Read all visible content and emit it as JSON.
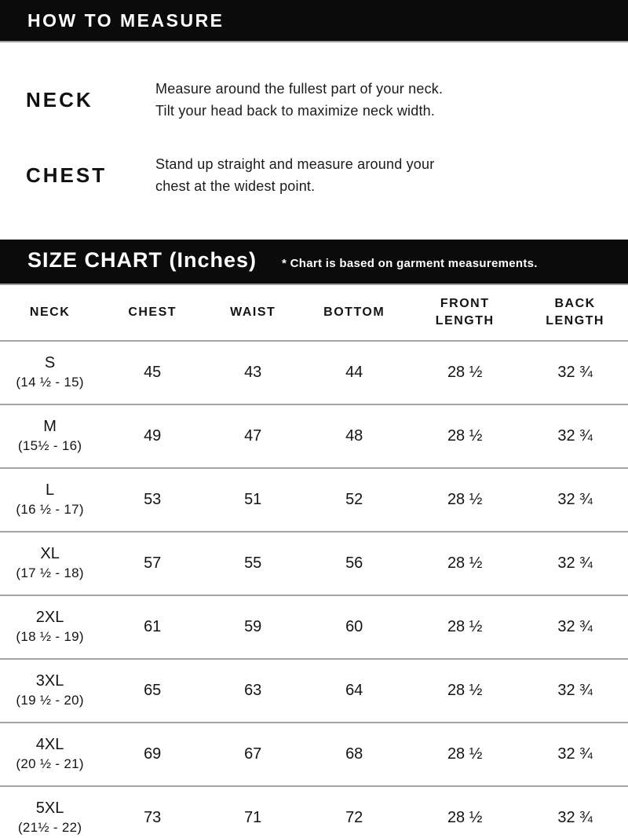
{
  "colors": {
    "header_bar_bg": "#0b0b0b",
    "header_bar_text": "#ffffff",
    "divider_gray": "#a5a5a5",
    "body_text": "#1b1b1b"
  },
  "how_to_measure": {
    "title": "HOW TO MEASURE",
    "items": [
      {
        "label": "NECK",
        "lines": [
          "Measure around the fullest part of your neck.",
          "Tilt your head back to maximize neck width."
        ]
      },
      {
        "label": "CHEST",
        "lines": [
          "Stand up straight and measure around your",
          "chest at the widest point."
        ]
      }
    ]
  },
  "size_chart": {
    "title": "SIZE CHART (Inches)",
    "note": "* Chart is based on garment measurements.",
    "columns": [
      "NECK",
      "CHEST",
      "WAIST",
      "BOTTOM",
      "FRONT LENGTH",
      "BACK LENGTH"
    ],
    "rows": [
      {
        "size": "S",
        "neck_range": "(14 ½ - 15)",
        "chest": "45",
        "waist": "43",
        "bottom": "44",
        "front_length": "28 ½",
        "back_length": "32 ¾"
      },
      {
        "size": "M",
        "neck_range": "(15½ - 16)",
        "chest": "49",
        "waist": "47",
        "bottom": "48",
        "front_length": "28 ½",
        "back_length": "32 ¾"
      },
      {
        "size": "L",
        "neck_range": "(16 ½ - 17)",
        "chest": "53",
        "waist": "51",
        "bottom": "52",
        "front_length": "28 ½",
        "back_length": "32 ¾"
      },
      {
        "size": "XL",
        "neck_range": "(17 ½ - 18)",
        "chest": "57",
        "waist": "55",
        "bottom": "56",
        "front_length": "28 ½",
        "back_length": "32 ¾"
      },
      {
        "size": "2XL",
        "neck_range": "(18 ½ - 19)",
        "chest": "61",
        "waist": "59",
        "bottom": "60",
        "front_length": "28 ½",
        "back_length": "32 ¾"
      },
      {
        "size": "3XL",
        "neck_range": "(19 ½ - 20)",
        "chest": "65",
        "waist": "63",
        "bottom": "64",
        "front_length": "28 ½",
        "back_length": "32 ¾"
      },
      {
        "size": "4XL",
        "neck_range": "(20 ½ - 21)",
        "chest": "69",
        "waist": "67",
        "bottom": "68",
        "front_length": "28 ½",
        "back_length": "32 ¾"
      },
      {
        "size": "5XL",
        "neck_range": "(21½ - 22)",
        "chest": "73",
        "waist": "71",
        "bottom": "72",
        "front_length": "28 ½",
        "back_length": "32 ¾"
      }
    ]
  }
}
